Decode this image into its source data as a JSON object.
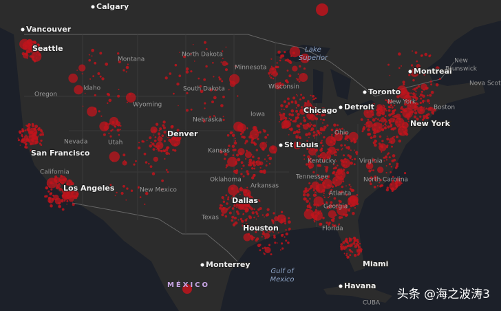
{
  "map": {
    "cities": [
      "Calgary",
      "Vancouver",
      "Seattle",
      "San Francisco",
      "Los Angeles",
      "Denver",
      "St Louis",
      "Chicago",
      "Detroit",
      "Toronto",
      "Montreal",
      "New York",
      "Dallas",
      "Houston",
      "Monterrey",
      "Miami",
      "Havana"
    ],
    "regions": [
      "North Dakota",
      "Minnesota",
      "Montana",
      "Wisconsin",
      "Idaho",
      "South Dakota",
      "Oregon",
      "Wyoming",
      "Iowa",
      "Nebraska",
      "Ohio",
      "Nevada",
      "Utah",
      "Kansas",
      "Kentucky",
      "Virginia",
      "California",
      "New Mexico",
      "Oklahoma",
      "Arkansas",
      "Tennessee",
      "North Carolina",
      "Atlanta",
      "Georgia",
      "Texas",
      "Florida",
      "New York",
      "Boston",
      "Nova Scotia",
      "CUBA"
    ],
    "multiline": [
      [
        "New",
        "Brunswick"
      ],
      [
        "Lake",
        "Superior"
      ],
      [
        "Gulf of",
        "Mexico"
      ]
    ],
    "country": "MÉXICO"
  },
  "watermark": "头条 @海之波涛3"
}
